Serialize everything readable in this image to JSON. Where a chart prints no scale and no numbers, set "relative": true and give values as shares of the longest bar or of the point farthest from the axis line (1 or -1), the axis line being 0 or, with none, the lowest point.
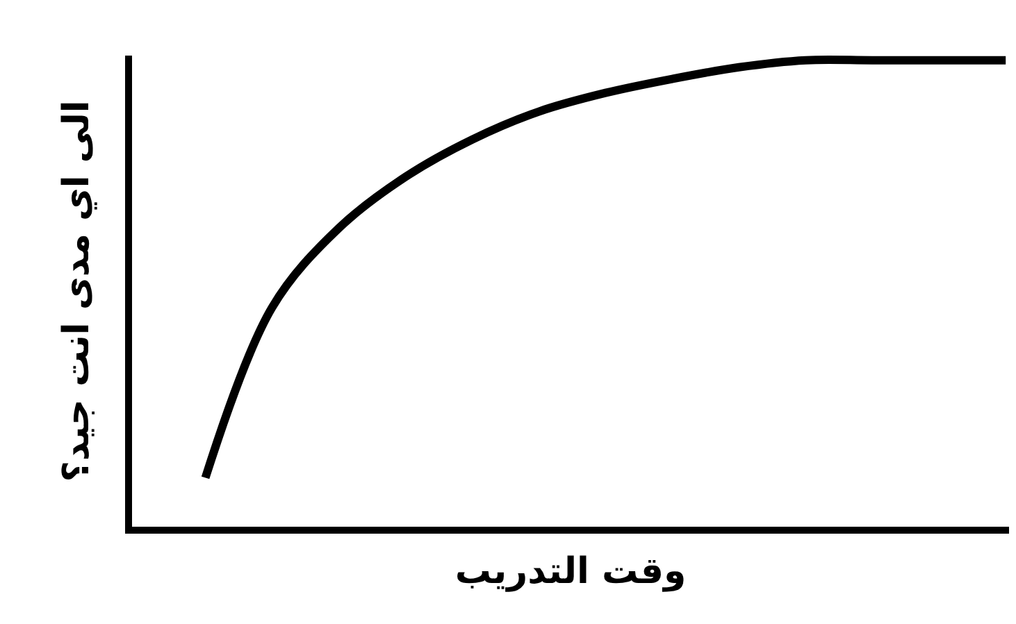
{
  "chart_data": {
    "type": "line",
    "relative": true,
    "xlabel": "وقت التدريب",
    "ylabel": "الى اي مدى انت جيد؟",
    "categories": [
      null,
      null,
      null,
      null,
      null,
      null,
      null,
      null,
      null,
      null,
      null,
      null,
      null
    ],
    "series": [
      {
        "color": "#000000",
        "values": [
          0.105,
          0.47,
          0.64,
          0.75,
          0.83,
          0.89,
          0.93,
          0.96,
          0.985,
          1.0,
          1.0,
          1.0,
          1.0
        ]
      }
    ],
    "legend": false,
    "marker": "none",
    "line_style": "solid",
    "tick_labels": false
  }
}
